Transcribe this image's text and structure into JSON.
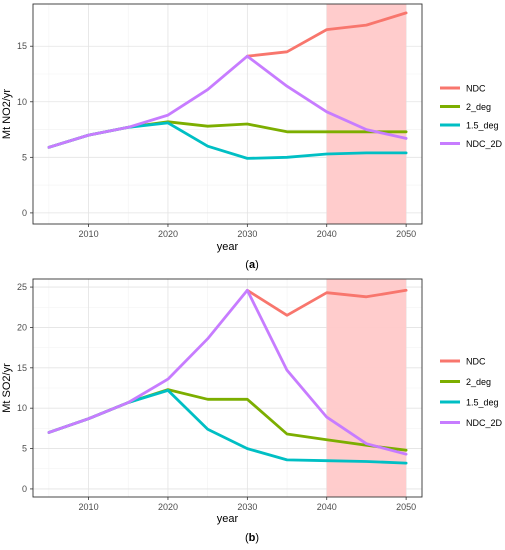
{
  "chart_data": [
    {
      "type": "line",
      "caption": "(a)",
      "xlabel": "year",
      "ylabel": "Mt NO2/yr",
      "xlim": [
        2003,
        2052
      ],
      "ylim": [
        -1.0,
        18.8
      ],
      "xticks": [
        2010,
        2020,
        2030,
        2040,
        2050
      ],
      "yticks": [
        0,
        5,
        10,
        15
      ],
      "grid": true,
      "legend_position": "right",
      "shaded_region": {
        "x": [
          2040,
          2050
        ],
        "color": "#ffc9c9"
      },
      "x": [
        2005,
        2010,
        2015,
        2020,
        2025,
        2030,
        2035,
        2040,
        2045,
        2050
      ],
      "series": [
        {
          "name": "NDC",
          "color": "#f8766d",
          "x": [
            2030,
            2035,
            2040,
            2045,
            2050
          ],
          "values": [
            14.1,
            14.5,
            16.5,
            16.9,
            18.0
          ]
        },
        {
          "name": "2_deg",
          "color": "#7cae00",
          "x": [
            2005,
            2010,
            2015,
            2020,
            2025,
            2030,
            2035,
            2040,
            2045,
            2050
          ],
          "values": [
            5.9,
            7.0,
            7.7,
            8.2,
            7.8,
            8.0,
            7.3,
            7.3,
            7.3,
            7.3
          ]
        },
        {
          "name": "1.5_deg",
          "color": "#00bfc4",
          "x": [
            2005,
            2010,
            2015,
            2020,
            2025,
            2030,
            2035,
            2040,
            2045,
            2050
          ],
          "values": [
            5.9,
            7.0,
            7.7,
            8.1,
            6.0,
            4.9,
            5.0,
            5.3,
            5.4,
            5.4
          ]
        },
        {
          "name": "NDC_2D",
          "color": "#c77cff",
          "x": [
            2005,
            2010,
            2015,
            2020,
            2025,
            2030,
            2035,
            2040,
            2045,
            2050
          ],
          "values": [
            5.9,
            7.0,
            7.7,
            8.8,
            11.1,
            14.1,
            11.4,
            9.1,
            7.5,
            6.7
          ]
        }
      ]
    },
    {
      "type": "line",
      "caption": "(b)",
      "xlabel": "year",
      "ylabel": "Mt SO2/yr",
      "xlim": [
        2003,
        2052
      ],
      "ylim": [
        -1.0,
        26.0
      ],
      "xticks": [
        2010,
        2020,
        2030,
        2040,
        2050
      ],
      "yticks": [
        0,
        5,
        10,
        15,
        20,
        25
      ],
      "grid": true,
      "legend_position": "right",
      "shaded_region": {
        "x": [
          2040,
          2050
        ],
        "color": "#ffc9c9"
      },
      "x": [
        2005,
        2010,
        2015,
        2020,
        2025,
        2030,
        2035,
        2040,
        2045,
        2050
      ],
      "series": [
        {
          "name": "NDC",
          "color": "#f8766d",
          "x": [
            2030,
            2035,
            2040,
            2045,
            2050
          ],
          "values": [
            24.6,
            21.5,
            24.3,
            23.8,
            24.6
          ]
        },
        {
          "name": "2_deg",
          "color": "#7cae00",
          "x": [
            2005,
            2010,
            2015,
            2020,
            2025,
            2030,
            2035,
            2040,
            2045,
            2050
          ],
          "values": [
            7.0,
            8.7,
            10.7,
            12.3,
            11.1,
            11.1,
            6.8,
            6.1,
            5.4,
            4.8
          ]
        },
        {
          "name": "1.5_deg",
          "color": "#00bfc4",
          "x": [
            2005,
            2010,
            2015,
            2020,
            2025,
            2030,
            2035,
            2040,
            2045,
            2050
          ],
          "values": [
            7.0,
            8.7,
            10.7,
            12.2,
            7.4,
            5.0,
            3.6,
            3.5,
            3.4,
            3.2
          ]
        },
        {
          "name": "NDC_2D",
          "color": "#c77cff",
          "x": [
            2005,
            2010,
            2015,
            2020,
            2025,
            2030,
            2035,
            2040,
            2045,
            2050
          ],
          "values": [
            7.0,
            8.7,
            10.7,
            13.6,
            18.6,
            24.6,
            14.7,
            8.9,
            5.6,
            4.3
          ]
        }
      ]
    }
  ]
}
